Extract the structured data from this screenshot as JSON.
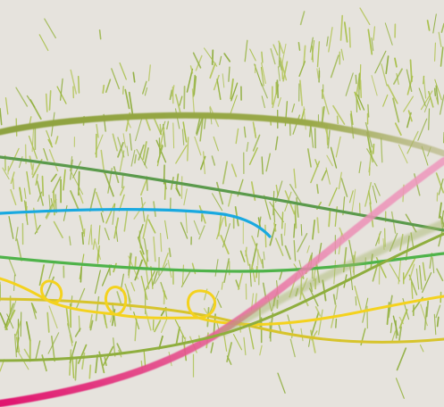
{
  "artwork": {
    "background_color": "#e6e3dd",
    "palette": {
      "grass_light": "#a8c04a",
      "grass_mid": "#8fae3e",
      "olive_band": "#8ea23f",
      "dark_green": "#5b9a4c",
      "bright_green": "#4fb34a",
      "cyan_line": "#19a9e0",
      "yellow_line": "#f4d21e",
      "mustard_line": "#d7c42c",
      "pink_band": "#e87aa6",
      "magenta": "#e0156e"
    },
    "elements": [
      "grass-strokes",
      "olive-band",
      "dark-green-curve",
      "cyan-curve",
      "bright-green-curve",
      "yellow-loop-curve",
      "mustard-curve",
      "pink-diagonal-band",
      "lower-green-curve"
    ]
  }
}
